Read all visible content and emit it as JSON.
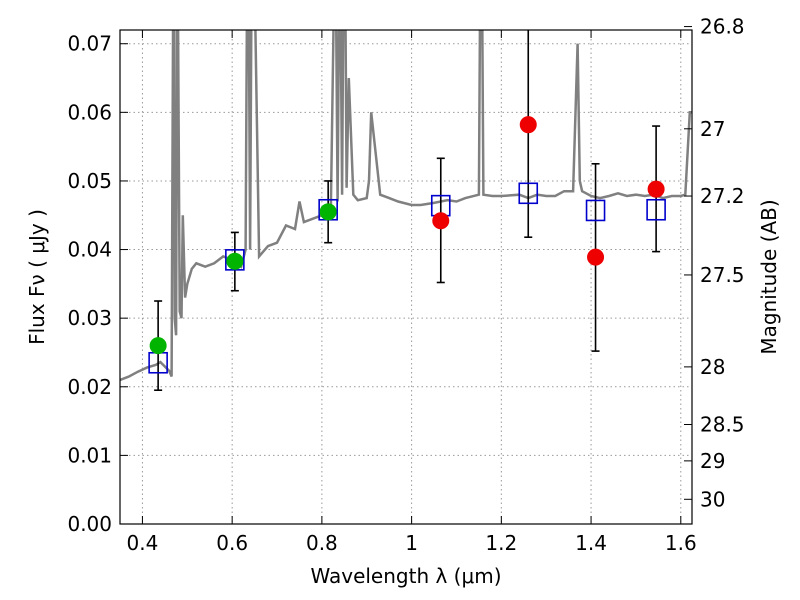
{
  "chart_data": {
    "type": "scatter",
    "xlabel": "Wavelength  λ (μm)",
    "ylabel": "Flux  Fν  ( μJy )",
    "y2label": "Magnitude (AB)",
    "xlim": [
      0.35,
      1.625
    ],
    "ylim": [
      0.0,
      0.072
    ],
    "x_ticks": [
      0.4,
      0.6,
      0.8,
      1.0,
      1.2,
      1.4,
      1.6
    ],
    "x_tick_labels": [
      "0.4",
      "0.6",
      "0.8",
      "1",
      "1.2",
      "1.4",
      "1.6"
    ],
    "y_ticks": [
      0.0,
      0.01,
      0.02,
      0.03,
      0.04,
      0.05,
      0.06,
      0.07
    ],
    "y_tick_labels": [
      "0.00",
      "0.01",
      "0.02",
      "0.03",
      "0.04",
      "0.05",
      "0.06",
      "0.07"
    ],
    "y2_tick_values_flux": [
      0.0725,
      0.0576,
      0.0478,
      0.0363,
      0.0229,
      0.0145,
      0.0092,
      0.0036
    ],
    "y2_tick_labels": [
      "26.8",
      "27",
      "27.2",
      "27.5",
      "28",
      "28.5",
      "29",
      "30"
    ],
    "grid": true,
    "observed_green": [
      {
        "x": 0.435,
        "y": 0.026,
        "yerr_low": 0.0195,
        "yerr_high": 0.0325
      },
      {
        "x": 0.606,
        "y": 0.0383,
        "yerr_low": 0.034,
        "yerr_high": 0.0425
      },
      {
        "x": 0.814,
        "y": 0.0455,
        "yerr_low": 0.041,
        "yerr_high": 0.05
      }
    ],
    "observed_red": [
      {
        "x": 1.065,
        "y": 0.0442,
        "yerr_low": 0.0352,
        "yerr_high": 0.0533
      },
      {
        "x": 1.26,
        "y": 0.0582,
        "yerr_low": 0.0418,
        "yerr_high": 0.0725
      },
      {
        "x": 1.41,
        "y": 0.0389,
        "yerr_low": 0.0252,
        "yerr_high": 0.0525
      },
      {
        "x": 1.545,
        "y": 0.0488,
        "yerr_low": 0.0397,
        "yerr_high": 0.058
      }
    ],
    "model_squares": [
      {
        "x": 0.435,
        "y": 0.0235
      },
      {
        "x": 0.606,
        "y": 0.0385
      },
      {
        "x": 0.814,
        "y": 0.0458
      },
      {
        "x": 1.065,
        "y": 0.0464
      },
      {
        "x": 1.26,
        "y": 0.0482
      },
      {
        "x": 1.41,
        "y": 0.0457
      },
      {
        "x": 1.545,
        "y": 0.0458
      }
    ],
    "model_spectrum": {
      "x": [
        0.35,
        0.37,
        0.39,
        0.41,
        0.43,
        0.44,
        0.46,
        0.465,
        0.47,
        0.472,
        0.475,
        0.478,
        0.483,
        0.487,
        0.49,
        0.495,
        0.5,
        0.51,
        0.52,
        0.54,
        0.56,
        0.58,
        0.6,
        0.62,
        0.63,
        0.635,
        0.64,
        0.645,
        0.66,
        0.68,
        0.7,
        0.72,
        0.74,
        0.75,
        0.76,
        0.78,
        0.8,
        0.82,
        0.83,
        0.835,
        0.84,
        0.845,
        0.85,
        0.855,
        0.86,
        0.87,
        0.88,
        0.9,
        0.905,
        0.91,
        0.93,
        0.95,
        0.97,
        1.0,
        1.02,
        1.05,
        1.08,
        1.1,
        1.12,
        1.15,
        1.155,
        1.16,
        1.18,
        1.2,
        1.24,
        1.26,
        1.28,
        1.3,
        1.32,
        1.34,
        1.36,
        1.37,
        1.375,
        1.38,
        1.4,
        1.42,
        1.44,
        1.46,
        1.48,
        1.5,
        1.52,
        1.54,
        1.56,
        1.58,
        1.6,
        1.61,
        1.62,
        1.625
      ],
      "y": [
        0.021,
        0.0215,
        0.0222,
        0.0228,
        0.0232,
        0.0236,
        0.0223,
        0.0215,
        0.1,
        0.03,
        0.0275,
        0.09,
        0.031,
        0.03,
        0.045,
        0.033,
        0.035,
        0.0372,
        0.038,
        0.0375,
        0.038,
        0.039,
        0.0385,
        0.0375,
        0.04,
        0.1,
        0.04,
        0.1,
        0.039,
        0.0405,
        0.041,
        0.0435,
        0.043,
        0.047,
        0.044,
        0.0445,
        0.045,
        0.0465,
        0.09,
        0.047,
        0.09,
        0.048,
        0.1,
        0.049,
        0.065,
        0.048,
        0.0472,
        0.0475,
        0.05,
        0.06,
        0.048,
        0.0475,
        0.047,
        0.0465,
        0.0465,
        0.0468,
        0.0472,
        0.047,
        0.0475,
        0.048,
        0.1,
        0.048,
        0.0478,
        0.0478,
        0.048,
        0.0475,
        0.048,
        0.0478,
        0.0478,
        0.0485,
        0.0485,
        0.07,
        0.05,
        0.0485,
        0.0478,
        0.0475,
        0.0478,
        0.0482,
        0.0478,
        0.048,
        0.0478,
        0.048,
        0.0475,
        0.0478,
        0.0478,
        0.048,
        0.06,
        0.06
      ]
    },
    "colors": {
      "green": "#00b400",
      "red": "#ee0000",
      "square": "#0000cc",
      "spectrum": "#808080",
      "errorbar": "#000000",
      "grid": "#9a9a9a"
    }
  }
}
